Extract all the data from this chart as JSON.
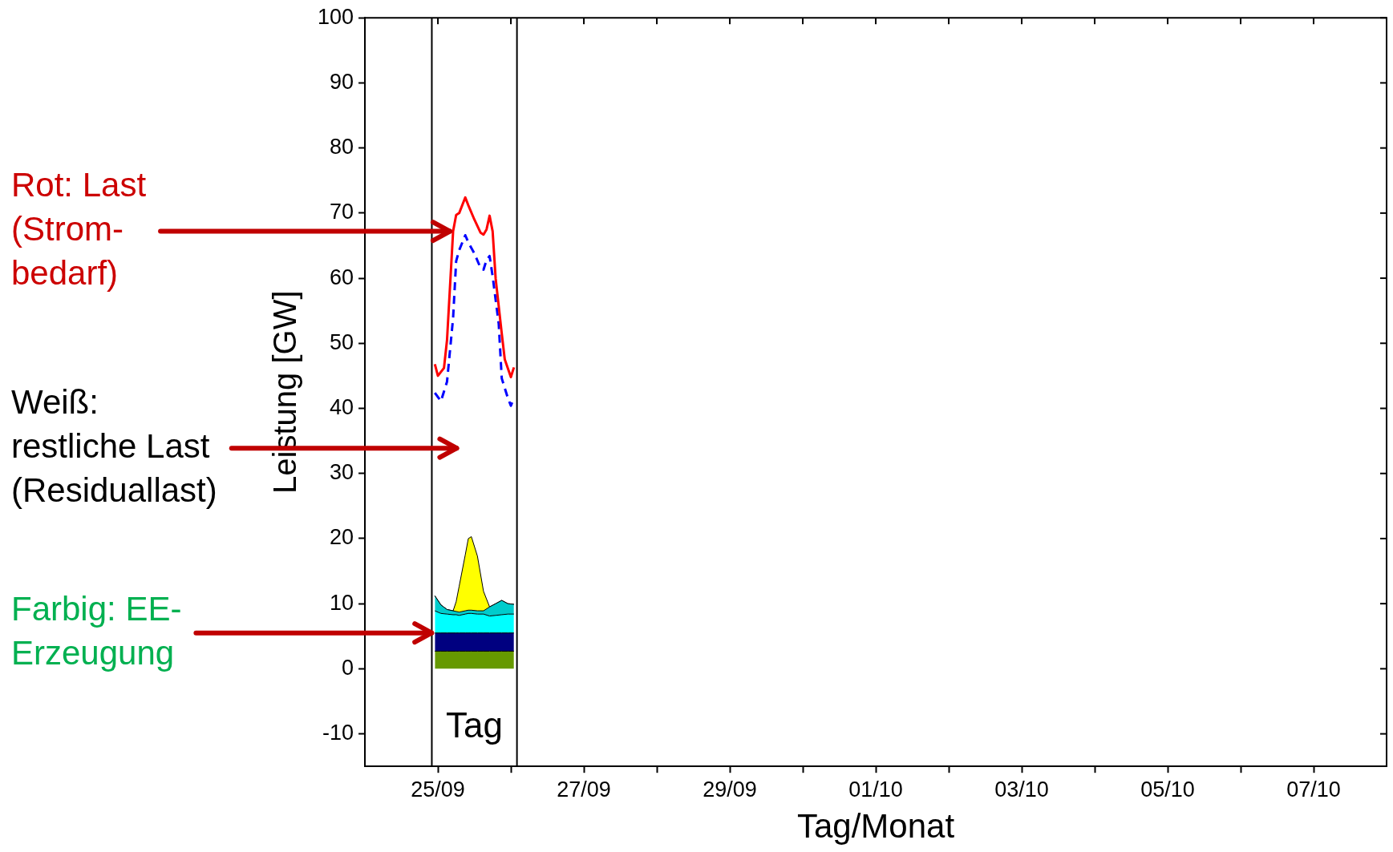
{
  "chart_data": {
    "type": "area",
    "stacked": true,
    "xlabel": "Tag/Monat",
    "ylabel": "Leistung [GW]",
    "xlim": [
      "--09-24T00:00",
      "--10-08T00:00"
    ],
    "ylim": [
      -15,
      100
    ],
    "xticks": [
      {
        "value": "--09-25",
        "label": "25/09"
      },
      {
        "value": "--09-26",
        "label": null
      },
      {
        "value": "--09-27",
        "label": "27/09"
      },
      {
        "value": "--09-28",
        "label": null
      },
      {
        "value": "--09-29",
        "label": "29/09"
      },
      {
        "value": "--09-30",
        "label": null
      },
      {
        "value": "--10-01",
        "label": "01/10"
      },
      {
        "value": "--10-02",
        "label": null
      },
      {
        "value": "--10-03",
        "label": "03/10"
      },
      {
        "value": "--10-04",
        "label": null
      },
      {
        "value": "--10-05",
        "label": "05/10"
      },
      {
        "value": "--10-06",
        "label": null
      },
      {
        "value": "--10-07",
        "label": "07/10"
      }
    ],
    "yticks": [
      -10,
      0,
      10,
      20,
      30,
      40,
      50,
      60,
      70,
      80,
      90,
      100
    ],
    "grid": false,
    "legend": false,
    "marker": "none",
    "x": [
      "--09-24T23:00",
      "--09-25T01:00",
      "--09-25T03:00",
      "--09-25T05:00",
      "--09-25T06:00",
      "--09-25T07:00",
      "--09-25T09:00",
      "--09-25T10:00",
      "--09-25T11:00",
      "--09-25T13:00",
      "--09-25T15:00",
      "--09-25T17:00",
      "--09-25T19:00",
      "--09-25T21:00",
      "--09-25T23:00",
      "--09-26T01:00"
    ],
    "series": [
      {
        "color": "#669900",
        "values": [
          2.7,
          2.7,
          2.7,
          2.7,
          2.7,
          2.7,
          2.7,
          2.7,
          2.7,
          2.7,
          2.7,
          2.7,
          2.7,
          2.7,
          2.7,
          2.7
        ]
      },
      {
        "color": "#000080",
        "values": [
          2.8,
          2.8,
          2.8,
          2.8,
          2.8,
          2.8,
          2.8,
          2.8,
          2.8,
          2.8,
          2.8,
          2.8,
          2.8,
          2.8,
          2.8,
          2.8
        ]
      },
      {
        "color": "#00ffff",
        "values": [
          3.4,
          3.0,
          2.9,
          2.8,
          2.8,
          2.7,
          2.9,
          3.0,
          3.0,
          2.9,
          2.9,
          2.6,
          2.7,
          2.8,
          2.9,
          2.9
        ]
      },
      {
        "color": "#00cccc",
        "values": [
          2.3,
          1.3,
          0.7,
          0.6,
          0.5,
          0.5,
          0.5,
          0.5,
          0.5,
          0.5,
          0.5,
          1.4,
          1.8,
          2.2,
          1.6,
          1.5
        ]
      },
      {
        "color": "#ffff00",
        "values": [
          0,
          0,
          0,
          0,
          1.5,
          4,
          8.6,
          11,
          11.3,
          8.4,
          3,
          0,
          0,
          0,
          0,
          0
        ]
      },
      {
        "type": "line",
        "color": "#ff0000",
        "line_style": "solid",
        "x": [
          "--09-24T23:00",
          "--09-25T00:00",
          "--09-25T02:00",
          "--09-25T03:00",
          "--09-25T05:00",
          "--09-25T06:00",
          "--09-25T07:00",
          "--09-25T09:00",
          "--09-25T10:00",
          "--09-25T12:00",
          "--09-25T14:00",
          "--09-25T15:00",
          "--09-25T16:00",
          "--09-25T17:00",
          "--09-25T18:00",
          "--09-25T19:00",
          "--09-25T21:00",
          "--09-25T22:00",
          "--09-26T00:00",
          "--09-26T01:00"
        ],
        "values": [
          46.8,
          45.0,
          46.2,
          50.5,
          67.2,
          69.7,
          70,
          72.4,
          71.2,
          69,
          67,
          66.7,
          67.5,
          69.6,
          67.2,
          59.9,
          51.5,
          47.5,
          44.8,
          46.3
        ]
      },
      {
        "type": "line",
        "color": "#0000ff",
        "line_style": "dashed",
        "x": [
          "--09-24T23:00",
          "--09-25T01:00",
          "--09-25T03:00",
          "--09-25T05:00",
          "--09-25T06:00",
          "--09-25T07:00",
          "--09-25T09:00",
          "--09-25T10:00",
          "--09-25T12:00",
          "--09-25T14:00",
          "--09-25T15:00",
          "--09-25T16:00",
          "--09-25T17:00",
          "--09-25T18:00",
          "--09-25T20:00",
          "--09-25T21:00",
          "--09-25T23:00",
          "--09-26T00:00",
          "--09-26T01:00"
        ],
        "values": [
          42.4,
          41.1,
          44.1,
          53.9,
          62.6,
          64.3,
          66.6,
          65.5,
          63.8,
          61.6,
          61.3,
          62.8,
          63.4,
          60.3,
          53,
          44.6,
          41.6,
          40.4,
          41.6
        ]
      }
    ],
    "ref_lines": [
      {
        "axis": "x",
        "value": "--09-24T22:00",
        "color": "#000000"
      },
      {
        "axis": "x",
        "value": "--09-26T02:00",
        "color": "#000000"
      }
    ],
    "annotations": [
      {
        "text": "Rot: Last\n(Strom-\nbedarf)",
        "x": "--09-25T05:00",
        "y": 67.2
      },
      "Weiß:\nrestliche Last\n(Residuallast)",
      {
        "text": "Farbig: EE-\nErzeugung",
        "x": "--09-24T23:00",
        "y": 5.5
      },
      "Tag"
    ]
  }
}
